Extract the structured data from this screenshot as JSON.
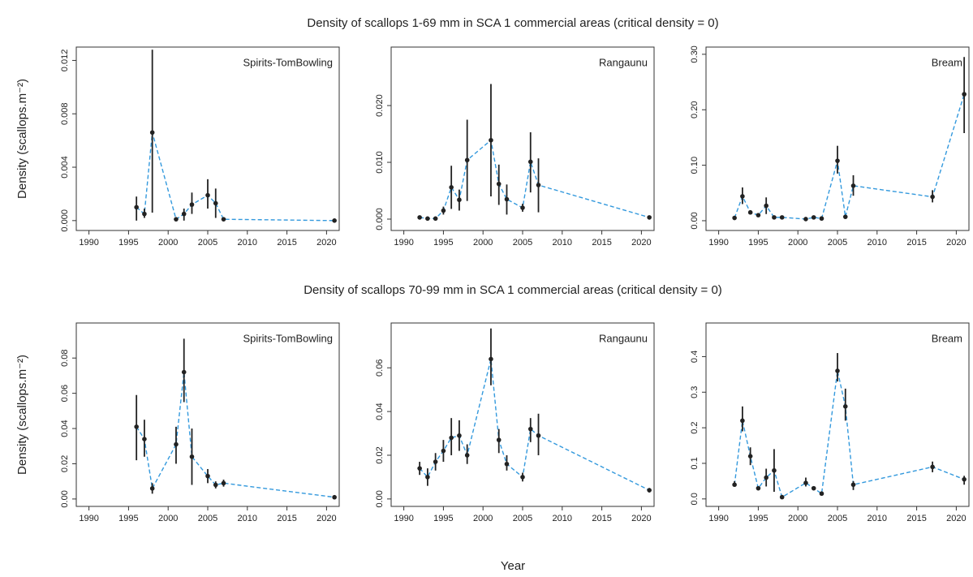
{
  "row_titles": [
    "Density of scallops 1-69 mm in SCA 1 commercial areas (critical density = 0)",
    "Density of scallops 70-99 mm in SCA 1 commercial areas (critical density = 0)"
  ],
  "xlabel": "Year",
  "chart_data": [
    {
      "type": "line",
      "title": "Spirits-TomBowling",
      "ylabel": "Density (scallops.m⁻²)",
      "color": "#3399dd",
      "x": [
        1996,
        1997,
        1998,
        2001,
        2002,
        2003,
        2005,
        2006,
        2007,
        2021
      ],
      "values": [
        0.001,
        0.0005,
        0.0066,
        0.0001,
        0.0005,
        0.0012,
        0.0019,
        0.0013,
        0.0001,
        0.0
      ],
      "lower": [
        0.0,
        0.0002,
        0.0006,
        null,
        0.0,
        0.0005,
        0.0009,
        0.0002,
        null,
        null
      ],
      "upper": [
        0.0018,
        0.0009,
        0.0128,
        null,
        0.0009,
        0.0021,
        0.0031,
        0.0024,
        null,
        null
      ],
      "xlim": [
        1988.4,
        2021.6
      ],
      "xticks": [
        1990,
        1995,
        2000,
        2005,
        2010,
        2015,
        2020
      ],
      "ylim": [
        -0.00074,
        0.013
      ],
      "yticks": [
        {
          "value": 0,
          "label": "0.000"
        },
        {
          "value": 0.004,
          "label": "0.004"
        },
        {
          "value": 0.008,
          "label": "0.008"
        },
        {
          "value": 0.012,
          "label": "0.012"
        }
      ]
    },
    {
      "type": "line",
      "title": "Rangaunu",
      "color": "#3399dd",
      "x": [
        1992,
        1993,
        1994,
        1995,
        1996,
        1997,
        1998,
        2001,
        2002,
        2003,
        2005,
        2006,
        2007,
        2021
      ],
      "values": [
        0.0003,
        0.0001,
        0.0001,
        0.0015,
        0.0056,
        0.0034,
        0.0104,
        0.0139,
        0.0062,
        0.0035,
        0.002,
        0.0101,
        0.006,
        0.0003
      ],
      "lower": [
        null,
        null,
        null,
        0.0008,
        0.0018,
        0.0015,
        0.0032,
        0.004,
        0.0025,
        0.0008,
        0.0013,
        0.0047,
        0.0012,
        null
      ],
      "upper": [
        null,
        null,
        null,
        0.0022,
        0.0094,
        0.0052,
        0.0175,
        0.0238,
        0.0096,
        0.0061,
        0.0027,
        0.0153,
        0.0107,
        null
      ],
      "xlim": [
        1988.4,
        2021.6
      ],
      "xticks": [
        1990,
        1995,
        2000,
        2005,
        2010,
        2015,
        2020
      ],
      "ylim": [
        -0.002,
        0.0303
      ],
      "yticks": [
        {
          "value": 0,
          "label": "0.000"
        },
        {
          "value": 0.01,
          "label": "0.010"
        },
        {
          "value": 0.02,
          "label": "0.020"
        }
      ]
    },
    {
      "type": "line",
      "title": "Bream",
      "color": "#3399dd",
      "x": [
        1992,
        1993,
        1994,
        1995,
        1996,
        1997,
        1998,
        2001,
        2002,
        2003,
        2005,
        2006,
        2007,
        2017,
        2021
      ],
      "values": [
        0.005,
        0.044,
        0.015,
        0.01,
        0.027,
        0.006,
        0.006,
        0.003,
        0.006,
        0.004,
        0.108,
        0.007,
        0.063,
        0.043,
        0.228
      ],
      "lower": [
        null,
        0.03,
        null,
        null,
        0.012,
        null,
        null,
        null,
        null,
        null,
        0.085,
        null,
        0.045,
        0.033,
        0.158
      ],
      "upper": [
        null,
        0.06,
        null,
        null,
        0.042,
        null,
        null,
        null,
        null,
        null,
        0.135,
        null,
        0.082,
        0.055,
        0.295
      ],
      "xlim": [
        1988.4,
        2021.6
      ],
      "xticks": [
        1990,
        1995,
        2000,
        2005,
        2010,
        2015,
        2020
      ],
      "ylim": [
        -0.0176,
        0.313
      ],
      "yticks": [
        {
          "value": 0,
          "label": "0.00"
        },
        {
          "value": 0.1,
          "label": "0.10"
        },
        {
          "value": 0.2,
          "label": "0.20"
        },
        {
          "value": 0.3,
          "label": "0.30"
        }
      ]
    },
    {
      "type": "line",
      "title": "Spirits-TomBowling",
      "ylabel": "Density (scallops.m⁻²)",
      "color": "#3399dd",
      "x": [
        1996,
        1997,
        1998,
        2001,
        2002,
        2003,
        2005,
        2006,
        2007,
        2021
      ],
      "values": [
        0.041,
        0.034,
        0.006,
        0.031,
        0.072,
        0.024,
        0.013,
        0.008,
        0.009,
        0.001
      ],
      "lower": [
        0.022,
        0.024,
        0.003,
        0.02,
        0.055,
        0.008,
        0.009,
        0.006,
        0.007,
        null
      ],
      "upper": [
        0.059,
        0.045,
        0.009,
        0.041,
        0.091,
        0.04,
        0.017,
        0.01,
        0.011,
        null
      ],
      "xlim": [
        1988.4,
        2021.6
      ],
      "xticks": [
        1990,
        1995,
        2000,
        2005,
        2010,
        2015,
        2020
      ],
      "ylim": [
        -0.0042,
        0.0999
      ],
      "yticks": [
        {
          "value": 0,
          "label": "0.00"
        },
        {
          "value": 0.02,
          "label": "0.02"
        },
        {
          "value": 0.04,
          "label": "0.04"
        },
        {
          "value": 0.06,
          "label": "0.06"
        },
        {
          "value": 0.08,
          "label": "0.08"
        }
      ]
    },
    {
      "type": "line",
      "title": "Rangaunu",
      "color": "#3399dd",
      "x": [
        1992,
        1993,
        1994,
        1995,
        1996,
        1997,
        1998,
        2001,
        2002,
        2003,
        2005,
        2006,
        2007,
        2021
      ],
      "values": [
        0.014,
        0.01,
        0.017,
        0.022,
        0.028,
        0.029,
        0.02,
        0.064,
        0.027,
        0.016,
        0.01,
        0.032,
        0.029,
        0.004
      ],
      "lower": [
        0.011,
        0.006,
        0.013,
        0.017,
        0.02,
        0.022,
        0.016,
        0.052,
        0.021,
        0.013,
        0.008,
        0.026,
        0.02,
        0.003
      ],
      "upper": [
        0.017,
        0.014,
        0.021,
        0.027,
        0.037,
        0.036,
        0.025,
        0.078,
        0.032,
        0.02,
        0.012,
        0.037,
        0.039,
        0.005
      ],
      "xlim": [
        1988.4,
        2021.6
      ],
      "xticks": [
        1990,
        1995,
        2000,
        2005,
        2010,
        2015,
        2020
      ],
      "ylim": [
        -0.0034,
        0.0805
      ],
      "yticks": [
        {
          "value": 0,
          "label": "0.00"
        },
        {
          "value": 0.02,
          "label": "0.02"
        },
        {
          "value": 0.04,
          "label": "0.04"
        },
        {
          "value": 0.06,
          "label": "0.06"
        }
      ]
    },
    {
      "type": "line",
      "title": "Bream",
      "color": "#3399dd",
      "x": [
        1992,
        1993,
        1994,
        1995,
        1996,
        1997,
        1998,
        2001,
        2002,
        2003,
        2005,
        2006,
        2007,
        2017,
        2021
      ],
      "values": [
        0.04,
        0.22,
        0.12,
        0.03,
        0.06,
        0.08,
        0.005,
        0.045,
        0.03,
        0.015,
        0.36,
        0.26,
        0.04,
        0.09,
        0.055
      ],
      "lower": [
        0.035,
        0.19,
        0.095,
        0.025,
        0.035,
        0.02,
        null,
        0.035,
        0.025,
        null,
        0.33,
        0.22,
        0.025,
        0.075,
        0.04
      ],
      "upper": [
        0.05,
        0.26,
        0.145,
        0.035,
        0.085,
        0.14,
        null,
        0.06,
        0.035,
        null,
        0.41,
        0.31,
        0.05,
        0.105,
        0.065
      ],
      "xlim": [
        1988.4,
        2021.6
      ],
      "xticks": [
        1990,
        1995,
        2000,
        2005,
        2010,
        2015,
        2020
      ],
      "ylim": [
        -0.021,
        0.4945
      ],
      "yticks": [
        {
          "value": 0,
          "label": "0.0"
        },
        {
          "value": 0.1,
          "label": "0.1"
        },
        {
          "value": 0.2,
          "label": "0.2"
        },
        {
          "value": 0.3,
          "label": "0.3"
        },
        {
          "value": 0.4,
          "label": "0.4"
        }
      ]
    }
  ]
}
